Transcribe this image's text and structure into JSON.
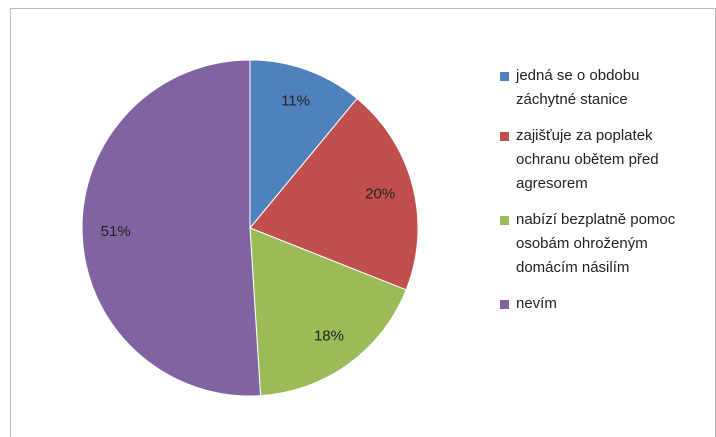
{
  "chart_data": {
    "type": "pie",
    "categories": [
      "jedná se o obdobu záchytné stanice",
      "zajišťuje za poplatek ochranu obětem před agresorem",
      "nabízí bezplatně pomoc osobám ohroženým domácím násilím",
      "nevím"
    ],
    "values": [
      11,
      20,
      18,
      51
    ],
    "value_labels": [
      "11%",
      "20%",
      "18%",
      "51%"
    ],
    "colors": [
      "#4f81bd",
      "#c0504d",
      "#9bbb59",
      "#8064a2"
    ],
    "legend": "right"
  }
}
